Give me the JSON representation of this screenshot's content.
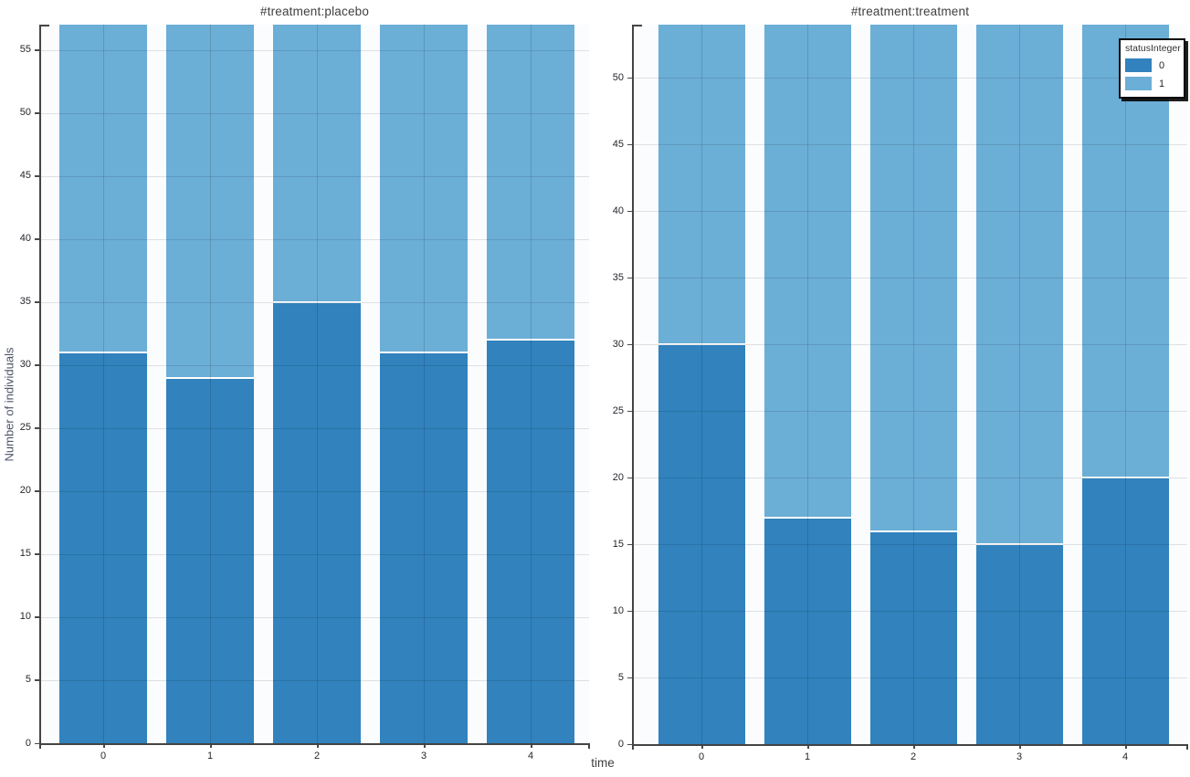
{
  "figure": {
    "xlabel": "time",
    "ylabel": "Number of individuals"
  },
  "legend": {
    "title": "statusInteger",
    "items": [
      {
        "label": "0",
        "color": "#3182bd"
      },
      {
        "label": "1",
        "color": "#6baed6"
      }
    ]
  },
  "chart_data": {
    "type": "bar",
    "stacked": true,
    "xlabel": "time",
    "ylabel": "Number of individuals",
    "legend_title": "statusInteger",
    "legend_position": "top-right",
    "grid": true,
    "colors": {
      "status_0": "#3182bd",
      "status_1": "#6baed6"
    },
    "facets": [
      {
        "title": "#treatment:placebo",
        "categories": [
          "0",
          "1",
          "2",
          "3",
          "4"
        ],
        "series": [
          {
            "name": "0",
            "values": [
              31,
              29,
              35,
              31,
              32
            ]
          },
          {
            "name": "1",
            "values": [
              26,
              28,
              22,
              26,
              25
            ]
          }
        ],
        "totals": [
          57,
          57,
          57,
          57,
          57
        ],
        "ylim": [
          0,
          57
        ],
        "yticks": [
          0,
          5,
          10,
          15,
          20,
          25,
          30,
          35,
          40,
          45,
          50,
          55
        ]
      },
      {
        "title": "#treatment:treatment",
        "categories": [
          "0",
          "1",
          "2",
          "3",
          "4"
        ],
        "series": [
          {
            "name": "0",
            "values": [
              30,
              17,
              16,
              15,
              20
            ]
          },
          {
            "name": "1",
            "values": [
              24,
              37,
              38,
              39,
              34
            ]
          }
        ],
        "totals": [
          54,
          54,
          54,
          54,
          54
        ],
        "ylim": [
          0,
          54
        ],
        "yticks": [
          0,
          5,
          10,
          15,
          20,
          25,
          30,
          35,
          40,
          45,
          50
        ]
      }
    ]
  }
}
